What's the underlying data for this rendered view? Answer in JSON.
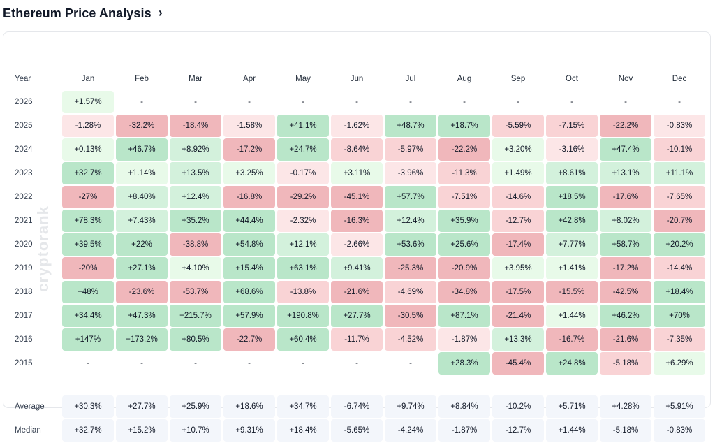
{
  "header": {
    "title": "Ethereum Price Analysis",
    "chevron": "›"
  },
  "watermark": "cryptorank",
  "table": {
    "year_header": "Year",
    "months": [
      "Jan",
      "Feb",
      "Mar",
      "Apr",
      "May",
      "Jun",
      "Jul",
      "Aug",
      "Sep",
      "Oct",
      "Nov",
      "Dec"
    ],
    "rows": [
      {
        "year": "2026",
        "cells": [
          [
            "+1.57%",
            "pos-l"
          ],
          [
            "-",
            ""
          ],
          [
            "-",
            ""
          ],
          [
            "-",
            ""
          ],
          [
            "-",
            ""
          ],
          [
            "-",
            ""
          ],
          [
            "-",
            ""
          ],
          [
            "-",
            ""
          ],
          [
            "-",
            ""
          ],
          [
            "-",
            ""
          ],
          [
            "-",
            ""
          ],
          [
            "-",
            ""
          ]
        ]
      },
      {
        "year": "2025",
        "cells": [
          [
            "-1.28%",
            "neg-l"
          ],
          [
            "-32.2%",
            "neg-s"
          ],
          [
            "-18.4%",
            "neg-s"
          ],
          [
            "-1.58%",
            "neg-l"
          ],
          [
            "+41.1%",
            "pos-s"
          ],
          [
            "-1.62%",
            "neg-l"
          ],
          [
            "+48.7%",
            "pos-s"
          ],
          [
            "+18.7%",
            "pos-s"
          ],
          [
            "-5.59%",
            "neg-m"
          ],
          [
            "-7.15%",
            "neg-m"
          ],
          [
            "-22.2%",
            "neg-s"
          ],
          [
            "-0.83%",
            "neg-l"
          ]
        ]
      },
      {
        "year": "2024",
        "cells": [
          [
            "+0.13%",
            "pos-l"
          ],
          [
            "+46.7%",
            "pos-s"
          ],
          [
            "+8.92%",
            "pos-m"
          ],
          [
            "-17.2%",
            "neg-s"
          ],
          [
            "+24.7%",
            "pos-s"
          ],
          [
            "-8.64%",
            "neg-m"
          ],
          [
            "-5.97%",
            "neg-m"
          ],
          [
            "-22.2%",
            "neg-s"
          ],
          [
            "+3.20%",
            "pos-l"
          ],
          [
            "-3.16%",
            "neg-l"
          ],
          [
            "+47.4%",
            "pos-s"
          ],
          [
            "-10.1%",
            "neg-m"
          ]
        ]
      },
      {
        "year": "2023",
        "cells": [
          [
            "+32.7%",
            "pos-s"
          ],
          [
            "+1.14%",
            "pos-l"
          ],
          [
            "+13.5%",
            "pos-m"
          ],
          [
            "+3.25%",
            "pos-l"
          ],
          [
            "-0.17%",
            "neg-l"
          ],
          [
            "+3.11%",
            "pos-l"
          ],
          [
            "-3.96%",
            "neg-l"
          ],
          [
            "-11.3%",
            "neg-m"
          ],
          [
            "+1.49%",
            "pos-l"
          ],
          [
            "+8.61%",
            "pos-m"
          ],
          [
            "+13.1%",
            "pos-m"
          ],
          [
            "+11.1%",
            "pos-m"
          ]
        ]
      },
      {
        "year": "2022",
        "cells": [
          [
            "-27%",
            "neg-s"
          ],
          [
            "+8.40%",
            "pos-m"
          ],
          [
            "+12.4%",
            "pos-m"
          ],
          [
            "-16.8%",
            "neg-s"
          ],
          [
            "-29.2%",
            "neg-s"
          ],
          [
            "-45.1%",
            "neg-s"
          ],
          [
            "+57.7%",
            "pos-s"
          ],
          [
            "-7.51%",
            "neg-m"
          ],
          [
            "-14.6%",
            "neg-m"
          ],
          [
            "+18.5%",
            "pos-s"
          ],
          [
            "-17.6%",
            "neg-s"
          ],
          [
            "-7.65%",
            "neg-m"
          ]
        ]
      },
      {
        "year": "2021",
        "cells": [
          [
            "+78.3%",
            "pos-s"
          ],
          [
            "+7.43%",
            "pos-m"
          ],
          [
            "+35.2%",
            "pos-s"
          ],
          [
            "+44.4%",
            "pos-s"
          ],
          [
            "-2.32%",
            "neg-l"
          ],
          [
            "-16.3%",
            "neg-s"
          ],
          [
            "+12.4%",
            "pos-m"
          ],
          [
            "+35.9%",
            "pos-s"
          ],
          [
            "-12.7%",
            "neg-m"
          ],
          [
            "+42.8%",
            "pos-s"
          ],
          [
            "+8.02%",
            "pos-m"
          ],
          [
            "-20.7%",
            "neg-s"
          ]
        ]
      },
      {
        "year": "2020",
        "cells": [
          [
            "+39.5%",
            "pos-s"
          ],
          [
            "+22%",
            "pos-s"
          ],
          [
            "-38.8%",
            "neg-s"
          ],
          [
            "+54.8%",
            "pos-s"
          ],
          [
            "+12.1%",
            "pos-m"
          ],
          [
            "-2.66%",
            "neg-l"
          ],
          [
            "+53.6%",
            "pos-s"
          ],
          [
            "+25.6%",
            "pos-s"
          ],
          [
            "-17.4%",
            "neg-s"
          ],
          [
            "+7.77%",
            "pos-m"
          ],
          [
            "+58.7%",
            "pos-s"
          ],
          [
            "+20.2%",
            "pos-s"
          ]
        ]
      },
      {
        "year": "2019",
        "cells": [
          [
            "-20%",
            "neg-s"
          ],
          [
            "+27.1%",
            "pos-s"
          ],
          [
            "+4.10%",
            "pos-l"
          ],
          [
            "+15.4%",
            "pos-s"
          ],
          [
            "+63.1%",
            "pos-s"
          ],
          [
            "+9.41%",
            "pos-m"
          ],
          [
            "-25.3%",
            "neg-s"
          ],
          [
            "-20.9%",
            "neg-s"
          ],
          [
            "+3.95%",
            "pos-l"
          ],
          [
            "+1.41%",
            "pos-l"
          ],
          [
            "-17.2%",
            "neg-s"
          ],
          [
            "-14.4%",
            "neg-m"
          ]
        ]
      },
      {
        "year": "2018",
        "cells": [
          [
            "+48%",
            "pos-s"
          ],
          [
            "-23.6%",
            "neg-s"
          ],
          [
            "-53.7%",
            "neg-s"
          ],
          [
            "+68.6%",
            "pos-s"
          ],
          [
            "-13.8%",
            "neg-m"
          ],
          [
            "-21.6%",
            "neg-s"
          ],
          [
            "-4.69%",
            "neg-m"
          ],
          [
            "-34.8%",
            "neg-s"
          ],
          [
            "-17.5%",
            "neg-s"
          ],
          [
            "-15.5%",
            "neg-s"
          ],
          [
            "-42.5%",
            "neg-s"
          ],
          [
            "+18.4%",
            "pos-s"
          ]
        ]
      },
      {
        "year": "2017",
        "cells": [
          [
            "+34.4%",
            "pos-s"
          ],
          [
            "+47.3%",
            "pos-s"
          ],
          [
            "+215.7%",
            "pos-s"
          ],
          [
            "+57.9%",
            "pos-s"
          ],
          [
            "+190.8%",
            "pos-s"
          ],
          [
            "+27.7%",
            "pos-s"
          ],
          [
            "-30.5%",
            "neg-s"
          ],
          [
            "+87.1%",
            "pos-s"
          ],
          [
            "-21.4%",
            "neg-s"
          ],
          [
            "+1.44%",
            "pos-l"
          ],
          [
            "+46.2%",
            "pos-s"
          ],
          [
            "+70%",
            "pos-s"
          ]
        ]
      },
      {
        "year": "2016",
        "cells": [
          [
            "+147%",
            "pos-s"
          ],
          [
            "+173.2%",
            "pos-s"
          ],
          [
            "+80.5%",
            "pos-s"
          ],
          [
            "-22.7%",
            "neg-s"
          ],
          [
            "+60.4%",
            "pos-s"
          ],
          [
            "-11.7%",
            "neg-m"
          ],
          [
            "-4.52%",
            "neg-m"
          ],
          [
            "-1.87%",
            "neg-l"
          ],
          [
            "+13.3%",
            "pos-m"
          ],
          [
            "-16.7%",
            "neg-s"
          ],
          [
            "-21.6%",
            "neg-s"
          ],
          [
            "-7.35%",
            "neg-m"
          ]
        ]
      },
      {
        "year": "2015",
        "cells": [
          [
            "-",
            ""
          ],
          [
            "-",
            ""
          ],
          [
            "-",
            ""
          ],
          [
            "-",
            ""
          ],
          [
            "-",
            ""
          ],
          [
            "-",
            ""
          ],
          [
            "-",
            ""
          ],
          [
            "+28.3%",
            "pos-s"
          ],
          [
            "-45.4%",
            "neg-s"
          ],
          [
            "+24.8%",
            "pos-s"
          ],
          [
            "-5.18%",
            "neg-m"
          ],
          [
            "+6.29%",
            "pos-l"
          ]
        ]
      }
    ],
    "stats": [
      {
        "label": "Average",
        "values": [
          "+30.3%",
          "+27.7%",
          "+25.9%",
          "+18.6%",
          "+34.7%",
          "-6.74%",
          "+9.74%",
          "+8.84%",
          "-10.2%",
          "+5.71%",
          "+4.28%",
          "+5.91%"
        ]
      },
      {
        "label": "Median",
        "values": [
          "+32.7%",
          "+15.2%",
          "+10.7%",
          "+9.31%",
          "+18.4%",
          "-5.65%",
          "-4.24%",
          "-1.87%",
          "-12.7%",
          "+1.44%",
          "-5.18%",
          "-0.83%"
        ]
      }
    ]
  },
  "colors": {
    "strong_positive_bg": "#b9e6c9",
    "medium_positive_bg": "#d3f1dc",
    "light_positive_bg": "#e8fae9",
    "strong_negative_bg": "#f0b7bb",
    "medium_negative_bg": "#f9d3d5",
    "light_negative_bg": "#fce6e7",
    "positive_text": "#2fa34a",
    "negative_text": "#d63a3f",
    "stat_bg": "#f3f6fb"
  }
}
